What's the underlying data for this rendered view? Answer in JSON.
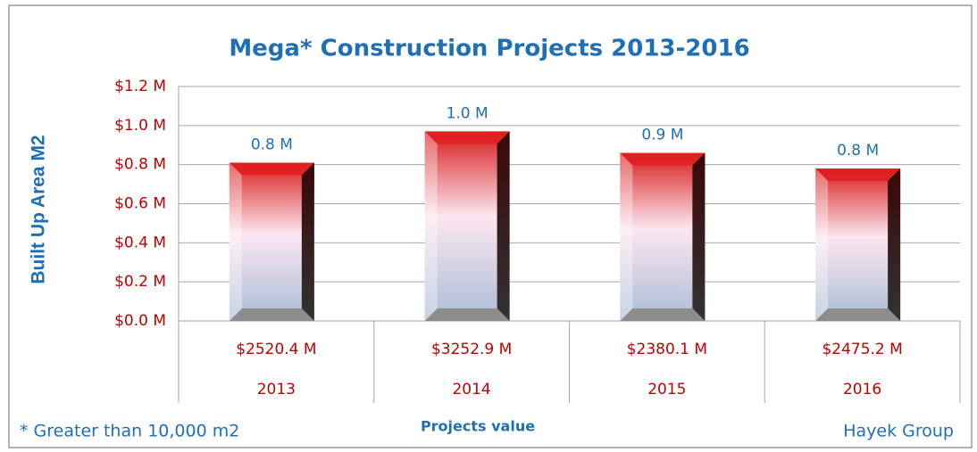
{
  "chart_data": {
    "type": "bar",
    "title": "Mega* Construction Projects 2013-2016",
    "ylabel": "Built Up Area M2",
    "xlabel": "Projects value",
    "categories": [
      "2013",
      "2014",
      "2015",
      "2016"
    ],
    "project_values": [
      "$2520.4 M",
      "$3252.9 M",
      "$2380.1 M",
      "$2475.2 M"
    ],
    "values": [
      0.81,
      0.97,
      0.86,
      0.78
    ],
    "value_labels": [
      "0.8 M",
      "1.0 M",
      "0.9 M",
      "0.8 M"
    ],
    "color": "#e02020",
    "ylim": [
      0,
      1.2
    ],
    "yticks": [
      {
        "value": 0,
        "label": "$0.0 M"
      },
      {
        "value": 0.2,
        "label": "$0.2 M"
      },
      {
        "value": 0.4,
        "label": "$0.4 M"
      },
      {
        "value": 0.6,
        "label": "$0.6 M"
      },
      {
        "value": 0.8,
        "label": "$0.8 M"
      },
      {
        "value": 1.0,
        "label": "$1.0 M"
      },
      {
        "value": 1.2,
        "label": "$1.2 M"
      }
    ],
    "grid": true,
    "footnote": "* Greater than 10,000 m2",
    "source": "Hayek Group"
  }
}
